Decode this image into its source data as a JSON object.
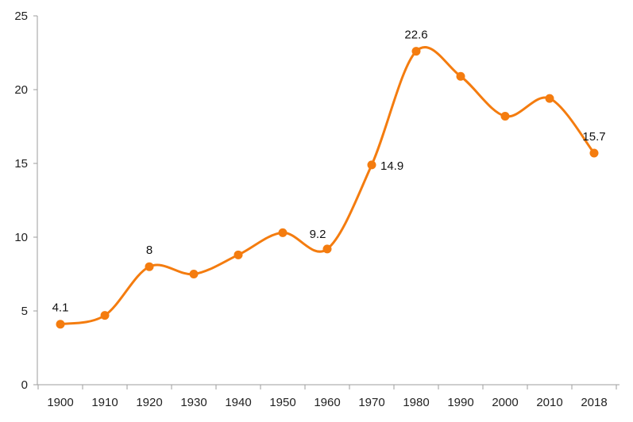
{
  "chart_data": {
    "type": "line",
    "title": "",
    "xlabel": "",
    "ylabel": "",
    "ylim": [
      0,
      25
    ],
    "y_ticks": [
      0,
      5,
      10,
      15,
      20,
      25
    ],
    "grid": false,
    "smooth": true,
    "color": "#f47c0f",
    "categories": [
      "1900",
      "1910",
      "1920",
      "1930",
      "1940",
      "1950",
      "1960",
      "1970",
      "1980",
      "1990",
      "2000",
      "2010",
      "2018"
    ],
    "series": [
      {
        "values": [
          4.1,
          4.7,
          8.0,
          7.5,
          8.8,
          10.3,
          9.2,
          14.9,
          22.6,
          20.9,
          18.2,
          19.4,
          15.7
        ]
      }
    ],
    "data_labels": [
      {
        "index": 0,
        "text": "4.1",
        "side": "above"
      },
      {
        "index": 2,
        "text": "8",
        "side": "above"
      },
      {
        "index": 6,
        "text": "9.2",
        "side": "above-left"
      },
      {
        "index": 7,
        "text": "14.9",
        "side": "right"
      },
      {
        "index": 8,
        "text": "22.6",
        "side": "above"
      },
      {
        "index": 12,
        "text": "15.7",
        "side": "above"
      }
    ]
  }
}
